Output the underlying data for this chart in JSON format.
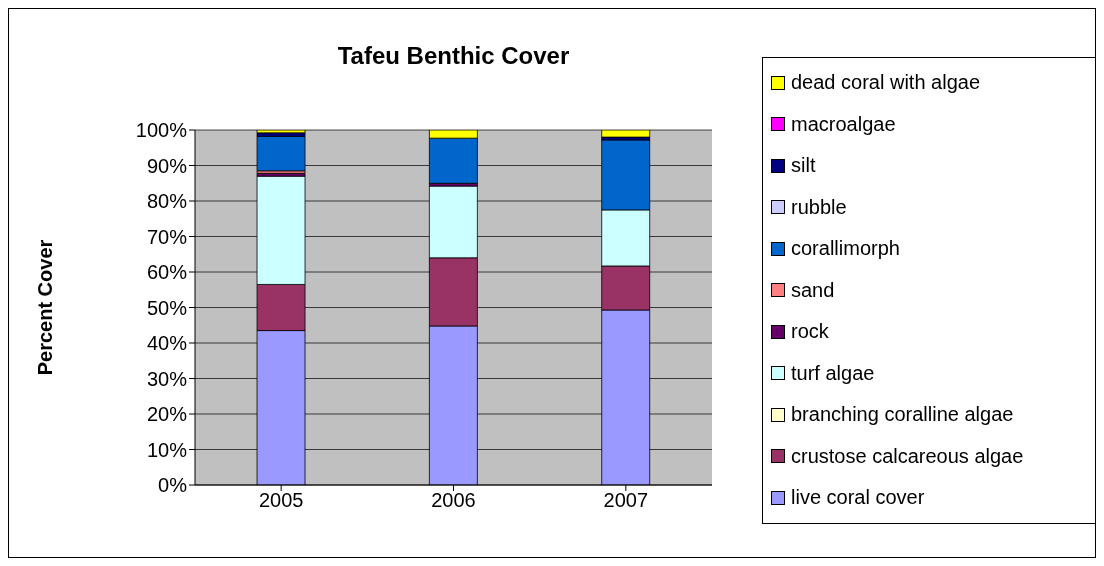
{
  "chart_data": {
    "type": "bar",
    "title": "Tafeu Benthic Cover",
    "ylabel": "Percent Cover",
    "categories": [
      "2005",
      "2006",
      "2007"
    ],
    "stacked": true,
    "ylim": [
      0,
      100
    ],
    "yticks": [
      {
        "value": 0,
        "label": "0%"
      },
      {
        "value": 10,
        "label": "10%"
      },
      {
        "value": 20,
        "label": "20%"
      },
      {
        "value": 30,
        "label": "30%"
      },
      {
        "value": 40,
        "label": "40%"
      },
      {
        "value": 50,
        "label": "50%"
      },
      {
        "value": 60,
        "label": "60%"
      },
      {
        "value": 70,
        "label": "70%"
      },
      {
        "value": 80,
        "label": "80%"
      },
      {
        "value": 90,
        "label": "90%"
      },
      {
        "value": 100,
        "label": "100%"
      }
    ],
    "grid": "y",
    "legend": "right",
    "series": [
      {
        "name": "live coral cover",
        "color": "#9999ff",
        "values": [
          43.5,
          44.8,
          49.3
        ]
      },
      {
        "name": "crustose calcareous algae",
        "color": "#993366",
        "values": [
          13,
          19.2,
          12.4
        ]
      },
      {
        "name": "branching coralline algae",
        "color": "#ffffcc",
        "values": [
          0,
          0,
          0
        ]
      },
      {
        "name": "turf algae",
        "color": "#ccffff",
        "values": [
          30.5,
          20.2,
          15.8
        ]
      },
      {
        "name": "rock",
        "color": "#660066",
        "values": [
          0.8,
          0.8,
          0
        ]
      },
      {
        "name": "sand",
        "color": "#ff8080",
        "values": [
          0.7,
          0,
          0
        ]
      },
      {
        "name": "corallimorph",
        "color": "#0066cc",
        "values": [
          9.7,
          12.7,
          19.7
        ]
      },
      {
        "name": "rubble",
        "color": "#ccccff",
        "values": [
          0,
          0,
          0
        ]
      },
      {
        "name": "silt",
        "color": "#000080",
        "values": [
          1,
          0,
          0.8
        ]
      },
      {
        "name": "macroalgae",
        "color": "#ff00ff",
        "values": [
          0,
          0,
          0
        ]
      },
      {
        "name": "dead coral with algae",
        "color": "#ffff00",
        "values": [
          0.8,
          2.3,
          2.0
        ]
      }
    ]
  }
}
